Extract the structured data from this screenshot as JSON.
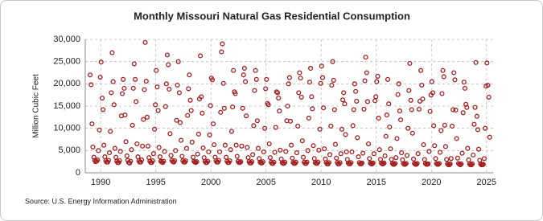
{
  "chart_data": {
    "type": "scatter",
    "title": "Monthly Missouri Natural Gas Residential Consumption",
    "y_label": "Million Cubic Feet",
    "source": "Source: U.S. Energy Information Administration",
    "color": "#a31f1f",
    "grid": true,
    "xlim": [
      1988.6,
      2025.6
    ],
    "xticks": [
      1990,
      1995,
      2000,
      2005,
      2010,
      2015,
      2020,
      2025
    ],
    "ylim": [
      0,
      30000
    ],
    "yticks": [
      {
        "value": 0,
        "label": "0"
      },
      {
        "value": 5000,
        "label": "5,000"
      },
      {
        "value": 10000,
        "label": "10,000"
      },
      {
        "value": 15000,
        "label": "15,000"
      },
      {
        "value": 20000,
        "label": "20,000"
      },
      {
        "value": 25000,
        "label": "25,000"
      },
      {
        "value": 30000,
        "label": "30,000"
      }
    ],
    "x": [
      1989.04,
      1989.13,
      1989.21,
      1989.29,
      1989.38,
      1989.46,
      1989.54,
      1989.63,
      1989.71,
      1989.79,
      1989.88,
      1989.96,
      1990.04,
      1990.13,
      1990.21,
      1990.29,
      1990.38,
      1990.46,
      1990.54,
      1990.63,
      1990.71,
      1990.79,
      1990.88,
      1990.96,
      1991.04,
      1991.13,
      1991.21,
      1991.29,
      1991.38,
      1991.46,
      1991.54,
      1991.63,
      1991.71,
      1991.79,
      1991.88,
      1991.96,
      1992.04,
      1992.13,
      1992.21,
      1992.29,
      1992.38,
      1992.46,
      1992.54,
      1992.63,
      1992.71,
      1992.79,
      1992.88,
      1992.96,
      1993.04,
      1993.13,
      1993.21,
      1993.29,
      1993.38,
      1993.46,
      1993.54,
      1993.63,
      1993.71,
      1993.79,
      1993.88,
      1993.96,
      1994.04,
      1994.13,
      1994.21,
      1994.29,
      1994.38,
      1994.46,
      1994.54,
      1994.63,
      1994.71,
      1994.79,
      1994.88,
      1994.96,
      1995.04,
      1995.13,
      1995.21,
      1995.29,
      1995.38,
      1995.46,
      1995.54,
      1995.63,
      1995.71,
      1995.79,
      1995.88,
      1995.96,
      1996.04,
      1996.13,
      1996.21,
      1996.29,
      1996.38,
      1996.46,
      1996.54,
      1996.63,
      1996.71,
      1996.79,
      1996.88,
      1996.96,
      1997.04,
      1997.13,
      1997.21,
      1997.29,
      1997.38,
      1997.46,
      1997.54,
      1997.63,
      1997.71,
      1997.79,
      1997.88,
      1997.96,
      1998.04,
      1998.13,
      1998.21,
      1998.29,
      1998.38,
      1998.46,
      1998.54,
      1998.63,
      1998.71,
      1998.79,
      1998.88,
      1998.96,
      1999.04,
      1999.13,
      1999.21,
      1999.29,
      1999.38,
      1999.46,
      1999.54,
      1999.63,
      1999.71,
      1999.79,
      1999.88,
      1999.96,
      2000.04,
      2000.13,
      2000.21,
      2000.29,
      2000.38,
      2000.46,
      2000.54,
      2000.63,
      2000.71,
      2000.79,
      2000.88,
      2000.96,
      2001.04,
      2001.13,
      2001.21,
      2001.29,
      2001.38,
      2001.46,
      2001.54,
      2001.63,
      2001.71,
      2001.79,
      2001.88,
      2001.96,
      2002.04,
      2002.13,
      2002.21,
      2002.29,
      2002.38,
      2002.46,
      2002.54,
      2002.63,
      2002.71,
      2002.79,
      2002.88,
      2002.96,
      2003.04,
      2003.13,
      2003.21,
      2003.29,
      2003.38,
      2003.46,
      2003.54,
      2003.63,
      2003.71,
      2003.79,
      2003.88,
      2003.96,
      2004.04,
      2004.13,
      2004.21,
      2004.29,
      2004.38,
      2004.46,
      2004.54,
      2004.63,
      2004.71,
      2004.79,
      2004.88,
      2004.96,
      2005.04,
      2005.13,
      2005.21,
      2005.29,
      2005.38,
      2005.46,
      2005.54,
      2005.63,
      2005.71,
      2005.79,
      2005.88,
      2005.96,
      2006.04,
      2006.13,
      2006.21,
      2006.29,
      2006.38,
      2006.46,
      2006.54,
      2006.63,
      2006.71,
      2006.79,
      2006.88,
      2006.96,
      2007.04,
      2007.13,
      2007.21,
      2007.29,
      2007.38,
      2007.46,
      2007.54,
      2007.63,
      2007.71,
      2007.79,
      2007.88,
      2007.96,
      2008.04,
      2008.13,
      2008.21,
      2008.29,
      2008.38,
      2008.46,
      2008.54,
      2008.63,
      2008.71,
      2008.79,
      2008.88,
      2008.96,
      2009.04,
      2009.13,
      2009.21,
      2009.29,
      2009.38,
      2009.46,
      2009.54,
      2009.63,
      2009.71,
      2009.79,
      2009.88,
      2009.96,
      2010.04,
      2010.13,
      2010.21,
      2010.29,
      2010.38,
      2010.46,
      2010.54,
      2010.63,
      2010.71,
      2010.79,
      2010.88,
      2010.96,
      2011.04,
      2011.13,
      2011.21,
      2011.29,
      2011.38,
      2011.46,
      2011.54,
      2011.63,
      2011.71,
      2011.79,
      2011.88,
      2011.96,
      2012.04,
      2012.13,
      2012.21,
      2012.29,
      2012.38,
      2012.46,
      2012.54,
      2012.63,
      2012.71,
      2012.79,
      2012.88,
      2012.96,
      2013.04,
      2013.13,
      2013.21,
      2013.29,
      2013.38,
      2013.46,
      2013.54,
      2013.63,
      2013.71,
      2013.79,
      2013.88,
      2013.96,
      2014.04,
      2014.13,
      2014.21,
      2014.29,
      2014.38,
      2014.46,
      2014.54,
      2014.63,
      2014.71,
      2014.79,
      2014.88,
      2014.96,
      2015.04,
      2015.13,
      2015.21,
      2015.29,
      2015.38,
      2015.46,
      2015.54,
      2015.63,
      2015.71,
      2015.79,
      2015.88,
      2015.96,
      2016.04,
      2016.13,
      2016.21,
      2016.29,
      2016.38,
      2016.46,
      2016.54,
      2016.63,
      2016.71,
      2016.79,
      2016.88,
      2016.96,
      2017.04,
      2017.13,
      2017.21,
      2017.29,
      2017.38,
      2017.46,
      2017.54,
      2017.63,
      2017.71,
      2017.79,
      2017.88,
      2017.96,
      2018.04,
      2018.13,
      2018.21,
      2018.29,
      2018.38,
      2018.46,
      2018.54,
      2018.63,
      2018.71,
      2018.79,
      2018.88,
      2018.96,
      2019.04,
      2019.13,
      2019.21,
      2019.29,
      2019.38,
      2019.46,
      2019.54,
      2019.63,
      2019.71,
      2019.79,
      2019.88,
      2019.96,
      2020.04,
      2020.13,
      2020.21,
      2020.29,
      2020.38,
      2020.46,
      2020.54,
      2020.63,
      2020.71,
      2020.79,
      2020.88,
      2020.96,
      2021.04,
      2021.13,
      2021.21,
      2021.29,
      2021.38,
      2021.46,
      2021.54,
      2021.63,
      2021.71,
      2021.79,
      2021.88,
      2021.96,
      2022.04,
      2022.13,
      2022.21,
      2022.29,
      2022.38,
      2022.46,
      2022.54,
      2022.63,
      2022.71,
      2022.79,
      2022.88,
      2022.96,
      2023.04,
      2023.13,
      2023.21,
      2023.29,
      2023.38,
      2023.46,
      2023.54,
      2023.63,
      2023.71,
      2023.79,
      2023.88,
      2023.96,
      2024.04,
      2024.13,
      2024.21,
      2024.29,
      2024.38,
      2024.46,
      2024.54,
      2024.63,
      2024.71,
      2024.79,
      2024.88,
      2024.96,
      2025.04,
      2025.13,
      2025.21,
      2025.29
    ],
    "values": [
      22000,
      19800,
      11000,
      5800,
      3500,
      2800,
      2500,
      2600,
      2900,
      5000,
      9600,
      21500,
      24900,
      16800,
      14200,
      6200,
      3600,
      2700,
      2400,
      2400,
      2800,
      4500,
      9300,
      18000,
      27000,
      20500,
      15300,
      5500,
      3500,
      2600,
      2300,
      2300,
      2700,
      4800,
      12800,
      17800,
      21000,
      19000,
      13000,
      7000,
      3800,
      2800,
      2300,
      2200,
      2600,
      5200,
      10700,
      19000,
      24500,
      21000,
      16000,
      6500,
      3600,
      2700,
      2400,
      2400,
      2900,
      6000,
      12000,
      18700,
      29300,
      20600,
      12500,
      6000,
      3400,
      2600,
      2300,
      2300,
      2700,
      4300,
      9800,
      15300,
      23000,
      19300,
      14000,
      5700,
      3600,
      2600,
      2400,
      2300,
      2600,
      4800,
      14900,
      20000,
      26500,
      24300,
      18800,
      8800,
      3900,
      2800,
      2500,
      2400,
      2700,
      5000,
      11800,
      19700,
      25000,
      18000,
      11300,
      7300,
      3700,
      2700,
      2400,
      2400,
      2700,
      5500,
      12900,
      18900,
      22000,
      16300,
      14000,
      6900,
      3500,
      2600,
      2400,
      2300,
      2500,
      4200,
      8700,
      16600,
      26300,
      17100,
      13400,
      5600,
      3400,
      2600,
      2300,
      2300,
      2600,
      4700,
      8500,
      15100,
      21300,
      20900,
      11000,
      6300,
      3500,
      2700,
      2400,
      2400,
      2800,
      4700,
      13600,
      27200,
      29000,
      20100,
      14500,
      6200,
      3500,
      2600,
      2300,
      2300,
      2700,
      5200,
      9300,
      14800,
      23000,
      18200,
      17800,
      6200,
      3700,
      2600,
      2300,
      2300,
      2500,
      6000,
      14500,
      22000,
      23500,
      20500,
      12800,
      5700,
      3400,
      2500,
      2200,
      2200,
      2500,
      4100,
      10600,
      18500,
      23000,
      21000,
      11700,
      5500,
      3200,
      2400,
      2200,
      2200,
      2500,
      4700,
      10000,
      18900,
      21000,
      15600,
      15300,
      6500,
      3400,
      2400,
      2100,
      2100,
      2400,
      4600,
      10200,
      18200,
      18000,
      16800,
      13900,
      5100,
      3100,
      2300,
      2100,
      2100,
      2400,
      4800,
      11700,
      15000,
      20000,
      21400,
      11600,
      6200,
      3300,
      2300,
      2100,
      2100,
      2400,
      4500,
      10500,
      18000,
      22500,
      21300,
      17000,
      7200,
      3500,
      2400,
      2100,
      2100,
      2400,
      5000,
      12300,
      20400,
      23500,
      17100,
      14400,
      6100,
      3200,
      2300,
      2100,
      2100,
      2400,
      5100,
      9800,
      20100,
      24000,
      21400,
      14600,
      5400,
      3100,
      2300,
      2000,
      2000,
      2300,
      4100,
      10500,
      19700,
      25000,
      20800,
      14200,
      6400,
      3300,
      2300,
      2000,
      2000,
      2300,
      4300,
      9800,
      16400,
      18000,
      15500,
      8600,
      4700,
      3000,
      2200,
      2000,
      2000,
      2300,
      4700,
      10600,
      14200,
      20000,
      18300,
      16100,
      7900,
      3600,
      2300,
      2000,
      2000,
      2200,
      4400,
      14300,
      20700,
      26000,
      22500,
      16000,
      6500,
      3200,
      2200,
      2000,
      2000,
      2200,
      4300,
      16200,
      17100,
      20500,
      21700,
      12300,
      5200,
      3000,
      2200,
      2000,
      2000,
      2200,
      3800,
      8200,
      13000,
      21000,
      15500,
      10300,
      5400,
      3000,
      2100,
      1900,
      1900,
      2100,
      3400,
      7700,
      17600,
      20000,
      13900,
      11900,
      4500,
      2900,
      2100,
      1900,
      1900,
      2100,
      3900,
      10000,
      18500,
      24600,
      16300,
      14200,
      8900,
      3100,
      2100,
      1900,
      1900,
      2100,
      4300,
      14300,
      16100,
      23000,
      19700,
      16600,
      6300,
      3000,
      2100,
      1900,
      1900,
      2000,
      4800,
      13800,
      17500,
      20500,
      18000,
      10600,
      6100,
      3200,
      2100,
      1900,
      1900,
      2100,
      4600,
      9500,
      17800,
      23000,
      21600,
      10700,
      5900,
      3000,
      2000,
      1800,
      1800,
      2000,
      3200,
      10500,
      14200,
      22500,
      20900,
      14100,
      7700,
      3300,
      2100,
      1900,
      1800,
      2000,
      4400,
      13500,
      20400,
      19000,
      15400,
      14700,
      5500,
      2900,
      2000,
      1800,
      1800,
      2000,
      4000,
      10900,
      14700,
      24800,
      12700,
      9700,
      5300,
      2800,
      2000,
      1800,
      1800,
      1900,
      3200,
      10000,
      19500,
      24700,
      19700,
      17000,
      8000
    ]
  }
}
